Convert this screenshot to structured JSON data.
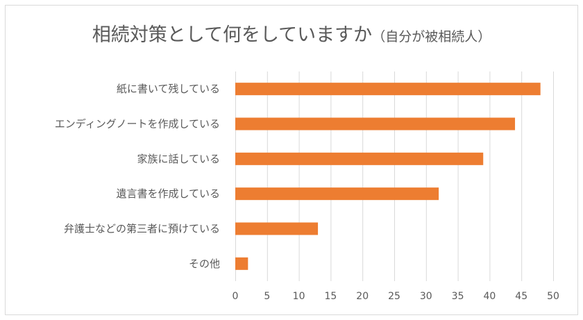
{
  "chart_data": {
    "type": "bar",
    "orientation": "horizontal",
    "title": "相続対策として何をしていますか",
    "subtitle": "（自分が被相続人）",
    "categories": [
      "紙に書いて残している",
      "エンディングノートを作成している",
      "家族に話している",
      "遺言書を作成している",
      "弁護士などの第三者に預けている",
      "その他"
    ],
    "values": [
      48,
      44,
      39,
      32,
      13,
      2
    ],
    "xlim": [
      0,
      50
    ],
    "x_ticks": [
      0,
      5,
      10,
      15,
      20,
      25,
      30,
      35,
      40,
      45,
      50
    ],
    "grid": "vertical",
    "legend": "none",
    "bar_color": "#ed7d31",
    "xlabel": "",
    "ylabel": ""
  }
}
